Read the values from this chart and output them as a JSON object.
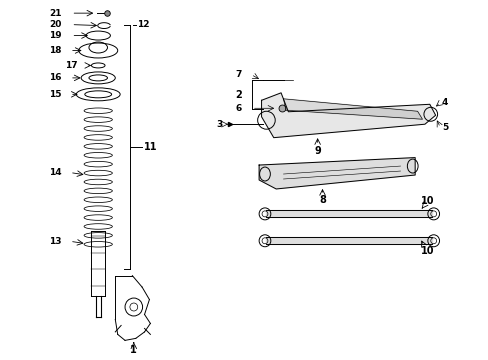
{
  "bg_color": "#ffffff",
  "line_color": "#000000",
  "fig_width": 4.89,
  "fig_height": 3.6,
  "dpi": 100,
  "xlim": [
    0,
    10
  ],
  "ylim": [
    0,
    7.2
  ]
}
